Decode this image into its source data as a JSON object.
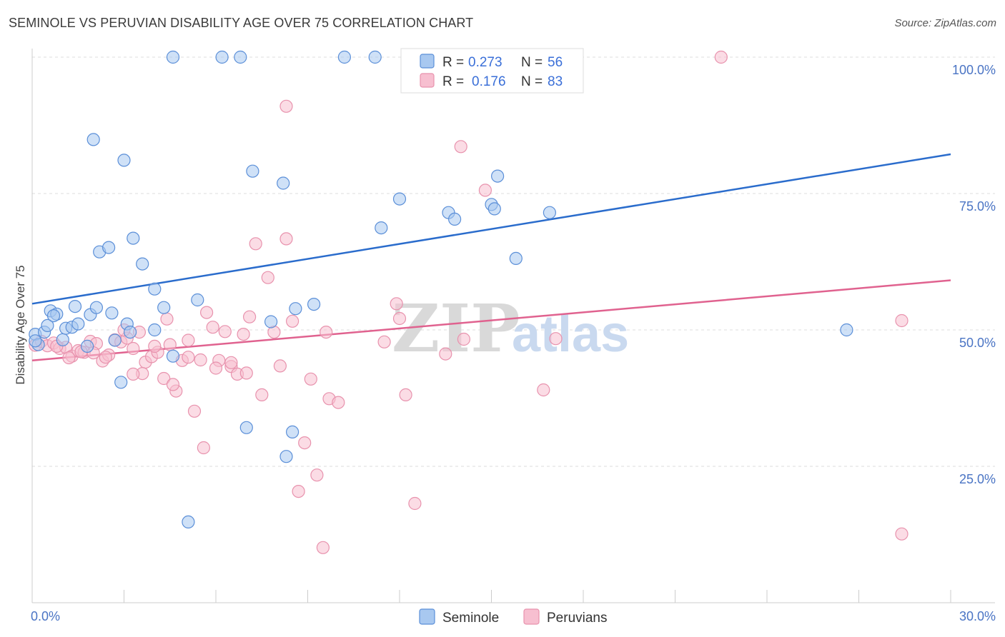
{
  "header": {
    "title": "SEMINOLE VS PERUVIAN DISABILITY AGE OVER 75 CORRELATION CHART",
    "source": "Source: ZipAtlas.com"
  },
  "watermark": {
    "zip": "ZIP",
    "atlas": "atlas"
  },
  "legend": {
    "r_label": "R =",
    "n_label": "N =",
    "rows": [
      {
        "r": "0.273",
        "n": "56"
      },
      {
        "r": "0.176",
        "n": "83"
      }
    ]
  },
  "chart_data": {
    "type": "scatter",
    "title": "SEMINOLE VS PERUVIAN DISABILITY AGE OVER 75 CORRELATION CHART",
    "ylabel": "Disability Age Over 75",
    "xlim": [
      0,
      30
    ],
    "ylim": [
      0,
      100
    ],
    "x_tick_labels": [
      "0.0%",
      "30.0%"
    ],
    "y_tick_values": [
      25,
      50,
      75,
      100
    ],
    "y_tick_labels": [
      "25.0%",
      "50.0%",
      "75.0%",
      "100.0%"
    ],
    "grid": true,
    "legend_position": "top-center",
    "colors": {
      "seminole_fill": "#a8c8f0",
      "seminole_stroke": "#5b8fd8",
      "seminole_line": "#2a6ccc",
      "peruvian_fill": "#f7bfd0",
      "peruvian_stroke": "#e892ad",
      "peruvian_line": "#e0628f",
      "tick_text": "#4a74c4"
    },
    "series": [
      {
        "name": "Seminole",
        "r": 0.273,
        "n": 56,
        "trend": {
          "x": [
            0,
            30
          ],
          "y": [
            54.8,
            82.2
          ]
        },
        "points": [
          [
            0.1,
            49.2
          ],
          [
            0.4,
            49.6
          ],
          [
            0.2,
            47.3
          ],
          [
            0.6,
            53.5
          ],
          [
            0.5,
            50.8
          ],
          [
            0.8,
            52.9
          ],
          [
            0.7,
            52.6
          ],
          [
            1.0,
            48.2
          ],
          [
            1.1,
            50.3
          ],
          [
            1.3,
            50.5
          ],
          [
            1.5,
            51.1
          ],
          [
            1.4,
            54.3
          ],
          [
            1.9,
            52.8
          ],
          [
            2.1,
            54.1
          ],
          [
            2.6,
            53.1
          ],
          [
            1.8,
            47.0
          ],
          [
            2.0,
            84.9
          ],
          [
            3.0,
            81.1
          ],
          [
            2.2,
            64.3
          ],
          [
            2.5,
            65.1
          ],
          [
            3.3,
            66.8
          ],
          [
            3.6,
            62.1
          ],
          [
            4.0,
            57.5
          ],
          [
            4.3,
            54.1
          ],
          [
            3.1,
            51.1
          ],
          [
            2.7,
            48.1
          ],
          [
            3.2,
            49.6
          ],
          [
            4.0,
            50.0
          ],
          [
            2.9,
            40.4
          ],
          [
            4.6,
            45.2
          ],
          [
            5.4,
            55.5
          ],
          [
            5.1,
            14.8
          ],
          [
            7.2,
            79.1
          ],
          [
            8.2,
            76.9
          ],
          [
            7.0,
            32.1
          ],
          [
            7.8,
            51.5
          ],
          [
            8.6,
            53.9
          ],
          [
            9.2,
            54.7
          ],
          [
            8.5,
            31.3
          ],
          [
            8.3,
            26.8
          ],
          [
            11.4,
            68.7
          ],
          [
            12.0,
            74.0
          ],
          [
            13.6,
            71.5
          ],
          [
            13.8,
            70.3
          ],
          [
            15.0,
            73.0
          ],
          [
            15.1,
            72.2
          ],
          [
            15.2,
            78.2
          ],
          [
            15.8,
            63.1
          ],
          [
            16.9,
            71.5
          ],
          [
            26.6,
            50.0
          ],
          [
            4.6,
            100
          ],
          [
            6.2,
            100
          ],
          [
            6.8,
            100
          ],
          [
            10.2,
            100
          ],
          [
            11.2,
            100
          ],
          [
            0.1,
            48.0
          ]
        ]
      },
      {
        "name": "Peruvians",
        "r": 0.176,
        "n": 83,
        "trend": {
          "x": [
            0,
            30
          ],
          "y": [
            44.4,
            59.1
          ]
        },
        "points": [
          [
            0.1,
            47.2
          ],
          [
            0.3,
            47.9
          ],
          [
            0.5,
            47.1
          ],
          [
            0.7,
            47.6
          ],
          [
            0.9,
            46.6
          ],
          [
            1.1,
            46.8
          ],
          [
            1.3,
            45.2
          ],
          [
            1.5,
            46.2
          ],
          [
            1.7,
            45.9
          ],
          [
            1.9,
            47.9
          ],
          [
            2.1,
            47.5
          ],
          [
            2.3,
            44.3
          ],
          [
            2.5,
            45.4
          ],
          [
            2.7,
            48.2
          ],
          [
            2.9,
            47.8
          ],
          [
            3.1,
            48.5
          ],
          [
            3.3,
            46.6
          ],
          [
            3.5,
            49.6
          ],
          [
            3.7,
            44.1
          ],
          [
            3.9,
            45.1
          ],
          [
            4.1,
            45.9
          ],
          [
            4.3,
            41.1
          ],
          [
            4.5,
            47.3
          ],
          [
            4.7,
            38.8
          ],
          [
            4.9,
            44.4
          ],
          [
            5.1,
            45.0
          ],
          [
            5.3,
            35.1
          ],
          [
            5.5,
            44.5
          ],
          [
            5.7,
            53.2
          ],
          [
            5.9,
            50.5
          ],
          [
            6.1,
            44.4
          ],
          [
            6.3,
            49.7
          ],
          [
            6.5,
            43.3
          ],
          [
            6.7,
            41.9
          ],
          [
            6.9,
            49.2
          ],
          [
            7.1,
            52.4
          ],
          [
            7.3,
            65.8
          ],
          [
            7.5,
            38.1
          ],
          [
            7.7,
            59.6
          ],
          [
            7.9,
            49.6
          ],
          [
            8.1,
            43.4
          ],
          [
            8.3,
            91.0
          ],
          [
            8.5,
            51.6
          ],
          [
            8.7,
            20.4
          ],
          [
            8.9,
            29.3
          ],
          [
            9.1,
            41.0
          ],
          [
            9.3,
            23.4
          ],
          [
            9.5,
            10.1
          ],
          [
            9.7,
            37.4
          ],
          [
            10.0,
            36.7
          ],
          [
            11.5,
            47.8
          ],
          [
            11.9,
            54.8
          ],
          [
            12.2,
            38.1
          ],
          [
            12.5,
            18.2
          ],
          [
            13.5,
            45.6
          ],
          [
            14.0,
            83.6
          ],
          [
            14.1,
            48.3
          ],
          [
            14.8,
            75.6
          ],
          [
            16.7,
            39.0
          ],
          [
            17.1,
            48.4
          ],
          [
            22.5,
            100
          ],
          [
            14.0,
            100
          ],
          [
            28.4,
            51.7
          ],
          [
            28.4,
            12.6
          ],
          [
            3.6,
            42.0
          ],
          [
            4.4,
            52.0
          ],
          [
            5.1,
            48.1
          ],
          [
            7.0,
            42.1
          ],
          [
            8.3,
            66.7
          ],
          [
            9.6,
            49.6
          ],
          [
            12.0,
            52.1
          ],
          [
            3.0,
            50.0
          ],
          [
            2.0,
            45.8
          ],
          [
            1.2,
            44.9
          ],
          [
            5.6,
            28.4
          ],
          [
            6.5,
            44.0
          ],
          [
            3.3,
            41.9
          ],
          [
            0.8,
            47.0
          ],
          [
            1.6,
            46.0
          ],
          [
            2.4,
            45.0
          ],
          [
            4.6,
            40.0
          ],
          [
            6.0,
            43.0
          ],
          [
            4.0,
            47.0
          ]
        ]
      }
    ]
  }
}
